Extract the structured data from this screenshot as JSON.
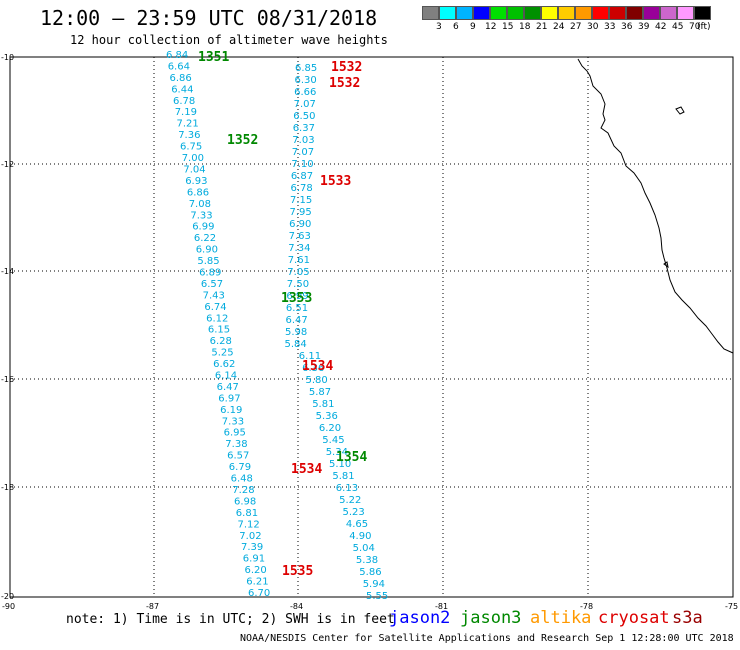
{
  "header": {
    "title": "12:00 – 23:59 UTC 08/31/2018",
    "subtitle": "12 hour collection of altimeter wave heights"
  },
  "legend": {
    "unit": "(ft)",
    "colors": [
      "#808080",
      "#00ffff",
      "#00b4ff",
      "#0000ff",
      "#00e000",
      "#00c000",
      "#009000",
      "#ffff00",
      "#ffcc00",
      "#ff9900",
      "#ff0000",
      "#cc0000",
      "#800000",
      "#990099",
      "#cc66cc",
      "#ff99ff",
      "#000000"
    ],
    "labels": [
      "3",
      "6",
      "9",
      "12",
      "15",
      "18",
      "21",
      "24",
      "27",
      "30",
      "33",
      "36",
      "39",
      "42",
      "45",
      "70"
    ]
  },
  "axes": {
    "lat_labels": [
      "-10",
      "-12",
      "-14",
      "-16",
      "-18",
      "-20"
    ],
    "lon_labels": [
      "-90",
      "-87",
      "-84",
      "-81",
      "-78",
      "-75"
    ]
  },
  "tracks": {
    "left_values": [
      "6.84",
      "6.64",
      "6.86",
      "6.44",
      "6.78",
      "7.19",
      "7.21",
      "7.36",
      "6.75",
      "7.00",
      "7.04",
      "6.93",
      "6.86",
      "7.08",
      "7.33",
      "6.99",
      "6.22",
      "6.90",
      "5.85",
      "6.89",
      "6.57",
      "7.43",
      "6.74",
      "6.12",
      "6.15",
      "6.28",
      "5.25",
      "6.62",
      "6.14",
      "6.47",
      "6.97",
      "6.19",
      "7.33",
      "6.95",
      "7.38",
      "6.57",
      "6.79",
      "6.48",
      "7.28",
      "6.98",
      "6.81",
      "7.12",
      "7.02",
      "7.39",
      "6.91",
      "6.20",
      "6.21",
      "6.70"
    ],
    "right_values": [
      "6.85",
      "6.30",
      "6.66",
      "7.07",
      "6.50",
      "6.37",
      "7.03",
      "7.07",
      "7.10",
      "6.87",
      "6.78",
      "7.15",
      "7.95",
      "6.90",
      "7.63",
      "7.34",
      "7.61",
      "7.05",
      "7.50",
      "6.99",
      "6.51",
      "6.47",
      "5.98",
      "5.84",
      "6.11",
      "6.36",
      "5.80",
      "5.87",
      "5.81",
      "5.36",
      "6.20",
      "5.45",
      "5.34",
      "5.10",
      "5.81",
      "6.13",
      "5.22",
      "5.23",
      "4.65",
      "4.90",
      "5.04",
      "5.38",
      "5.86",
      "5.94",
      "5.55"
    ]
  },
  "pass_labels": [
    {
      "text": "1351",
      "color": "#008800"
    },
    {
      "text": "1532",
      "color": "#dd0000"
    },
    {
      "text": "1532",
      "color": "#dd0000"
    },
    {
      "text": "1352",
      "color": "#008800"
    },
    {
      "text": "1533",
      "color": "#dd0000"
    },
    {
      "text": "1353",
      "color": "#008800"
    },
    {
      "text": "1534",
      "color": "#dd0000"
    },
    {
      "text": "1354",
      "color": "#008800"
    },
    {
      "text": "1534",
      "color": "#dd0000"
    },
    {
      "text": "1535",
      "color": "#dd0000"
    }
  ],
  "footer": {
    "note": "note: 1) Time is in UTC; 2) SWH is in feet",
    "satellites": [
      {
        "name": "jason2",
        "color": "#0000ff"
      },
      {
        "name": "jason3",
        "color": "#008800"
      },
      {
        "name": "altika",
        "color": "#ff9900"
      },
      {
        "name": "cryosat",
        "color": "#dd0000"
      },
      {
        "name": "s3a",
        "color": "#990000"
      }
    ],
    "credit": "NOAA/NESDIS Center for Satellite Applications and Research   Sep  1 12:28:00 UTC 2018"
  },
  "style": {
    "track_color": "#00aadd"
  }
}
